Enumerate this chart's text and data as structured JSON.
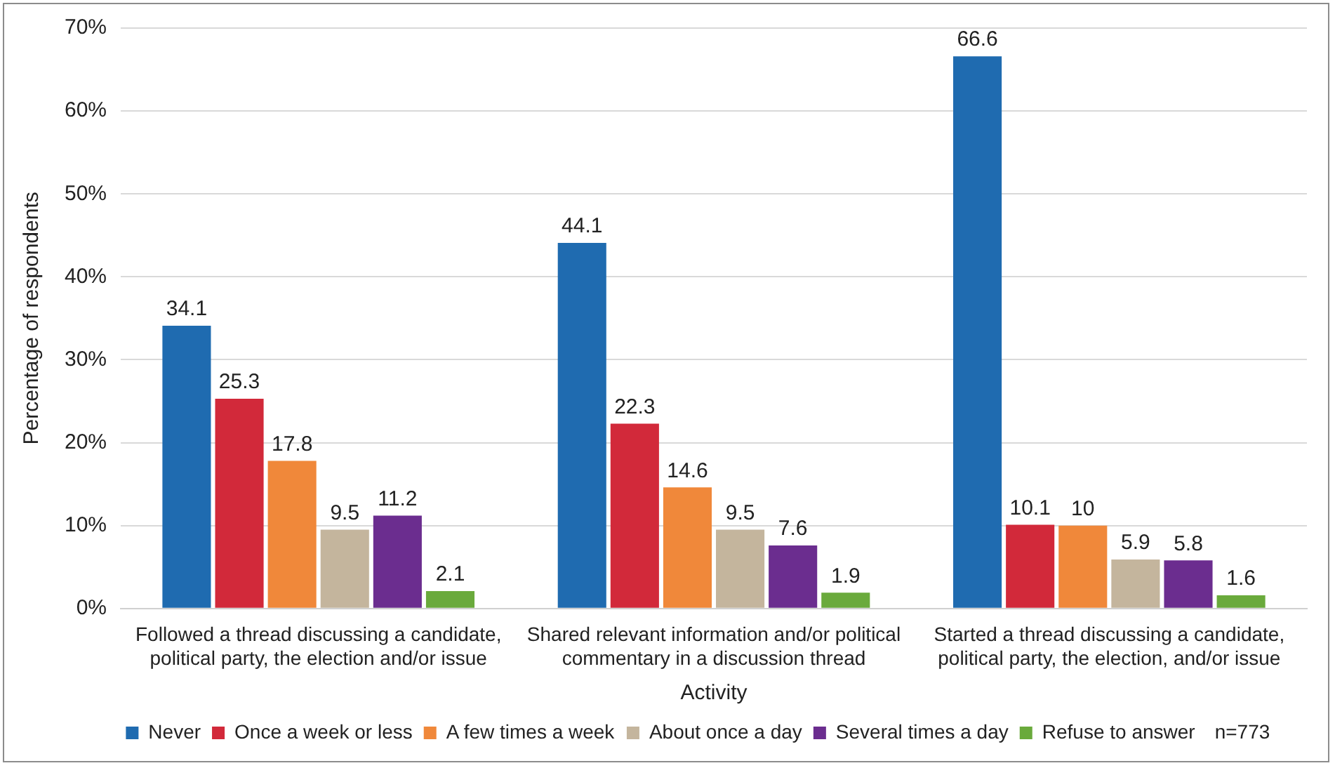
{
  "chart_data": {
    "type": "bar",
    "ylabel": "Percentage of respondents",
    "xlabel": "Activity",
    "categories": [
      "Followed a thread discussing a candidate, political party, the election and/or issue",
      "Shared relevant information and/or political commentary in a discussion thread",
      "Started a thread discussing a candidate, political party, the election, and/or issue"
    ],
    "series": [
      {
        "name": "Never",
        "color": "#1f6bb0",
        "values": [
          34.1,
          44.1,
          66.6
        ]
      },
      {
        "name": "Once a week or less",
        "color": "#d2293a",
        "values": [
          25.3,
          22.3,
          10.1
        ]
      },
      {
        "name": "A few times a week",
        "color": "#f0883a",
        "values": [
          17.8,
          14.6,
          10
        ]
      },
      {
        "name": "About once a day",
        "color": "#c4b59d",
        "values": [
          9.5,
          9.5,
          5.9
        ]
      },
      {
        "name": "Several times a day",
        "color": "#6b2d8f",
        "values": [
          11.2,
          7.6,
          5.8
        ]
      },
      {
        "name": "Refuse to answer",
        "color": "#6aaa3c",
        "values": [
          2.1,
          1.9,
          1.6
        ]
      }
    ],
    "ylim": [
      0,
      70
    ],
    "yticks": [
      {
        "value": 0,
        "label": "0%"
      },
      {
        "value": 10,
        "label": "10%"
      },
      {
        "value": 20,
        "label": "20%"
      },
      {
        "value": 30,
        "label": "30%"
      },
      {
        "value": 40,
        "label": "40%"
      },
      {
        "value": 50,
        "label": "50%"
      },
      {
        "value": 60,
        "label": "60%"
      },
      {
        "value": 70,
        "label": "70%"
      }
    ],
    "grid": "y",
    "legend": "bottom",
    "data_labels": true,
    "annotations": [
      "n=773"
    ]
  }
}
